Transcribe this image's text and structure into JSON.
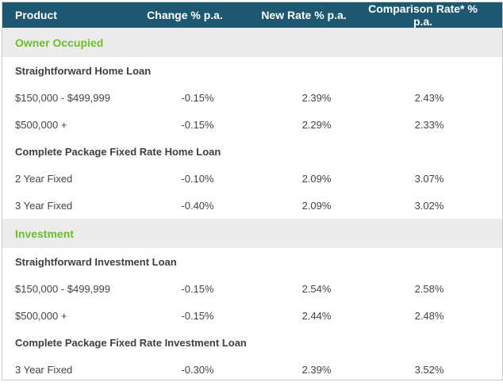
{
  "header": {
    "product": "Product",
    "change": "Change % p.a.",
    "new_rate": "New Rate % p.a.",
    "comparison": "Comparison Rate* % p.a."
  },
  "sections": [
    {
      "title": "Owner Occupied",
      "groups": [
        {
          "name": "Straightforward Home Loan",
          "rows": [
            {
              "label": "$150,000 - $499,999",
              "change": "-0.15%",
              "new_rate": "2.39%",
              "comparison": "2.43%"
            },
            {
              "label": "$500,000 +",
              "change": "-0.15%",
              "new_rate": "2.29%",
              "comparison": "2.33%"
            }
          ]
        },
        {
          "name": "Complete Package Fixed Rate Home Loan",
          "rows": [
            {
              "label": "2 Year Fixed",
              "change": "-0.10%",
              "new_rate": "2.09%",
              "comparison": "3.07%"
            },
            {
              "label": "3 Year Fixed",
              "change": "-0.40%",
              "new_rate": "2.09%",
              "comparison": "3.02%"
            }
          ]
        }
      ]
    },
    {
      "title": "Investment",
      "groups": [
        {
          "name": "Straightforward Investment Loan",
          "rows": [
            {
              "label": "$150,000 - $499,999",
              "change": "-0.15%",
              "new_rate": "2.54%",
              "comparison": "2.58%"
            },
            {
              "label": "$500,000 +",
              "change": "-0.15%",
              "new_rate": "2.44%",
              "comparison": "2.48%"
            }
          ]
        },
        {
          "name": "Complete Package Fixed Rate Investment Loan",
          "rows": [
            {
              "label": "3 Year Fixed",
              "change": "-0.30%",
              "new_rate": "2.39%",
              "comparison": "3.52%"
            }
          ]
        }
      ]
    }
  ]
}
